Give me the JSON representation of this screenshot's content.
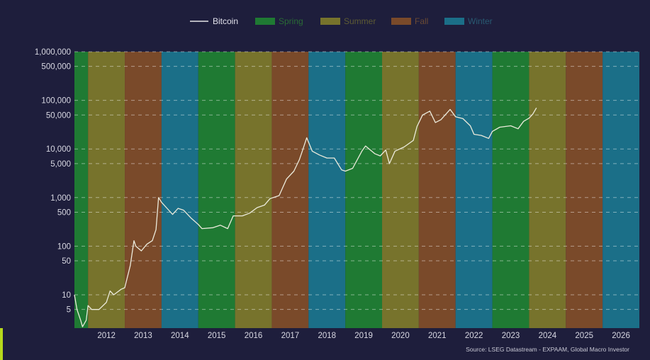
{
  "chart_data": {
    "type": "line",
    "title": "",
    "xlabel": "",
    "ylabel": "",
    "yscale": "log",
    "ylim": [
      2,
      1000000
    ],
    "xlim": [
      2011.63,
      2027.0
    ],
    "yticks": [
      1000000,
      500000,
      100000,
      50000,
      10000,
      5000,
      1000,
      500,
      100,
      50,
      10,
      5
    ],
    "ytick_labels": [
      "1,000,000",
      "500,000",
      "100,000",
      "50,000",
      "10,000",
      "5,000",
      "1,000",
      "500",
      "100",
      "50",
      "10",
      "5"
    ],
    "xtick_labels": [
      "2012",
      "2013",
      "2014",
      "2015",
      "2016",
      "2017",
      "2018",
      "2019",
      "2020",
      "2021",
      "2022",
      "2023",
      "2024",
      "2025",
      "2026"
    ],
    "grid": true,
    "legend_placement": "top-center",
    "legend": [
      {
        "label": "Bitcoin",
        "kind": "line",
        "color": "#e6e6e6",
        "text_color": "#e0e0ea"
      },
      {
        "label": "Spring",
        "kind": "patch",
        "color": "#1f7a33",
        "text_color": "#2a6b36"
      },
      {
        "label": "Summer",
        "kind": "patch",
        "color": "#77732c",
        "text_color": "#5d5b34"
      },
      {
        "label": "Fall",
        "kind": "patch",
        "color": "#7a4a2a",
        "text_color": "#6a4a34"
      },
      {
        "label": "Winter",
        "kind": "patch",
        "color": "#1b6f88",
        "text_color": "#285a72"
      }
    ],
    "seasons": [
      {
        "season": "Spring",
        "start": 2011.63,
        "end": 2012
      },
      {
        "season": "Summer",
        "start": 2012,
        "end": 2013
      },
      {
        "season": "Fall",
        "start": 2013,
        "end": 2014
      },
      {
        "season": "Winter",
        "start": 2014,
        "end": 2015
      },
      {
        "season": "Spring",
        "start": 2015,
        "end": 2016
      },
      {
        "season": "Summer",
        "start": 2016,
        "end": 2017
      },
      {
        "season": "Fall",
        "start": 2017,
        "end": 2018
      },
      {
        "season": "Winter",
        "start": 2018,
        "end": 2019
      },
      {
        "season": "Spring",
        "start": 2019,
        "end": 2020
      },
      {
        "season": "Summer",
        "start": 2020,
        "end": 2021
      },
      {
        "season": "Fall",
        "start": 2021,
        "end": 2022
      },
      {
        "season": "Winter",
        "start": 2022,
        "end": 2023
      },
      {
        "season": "Spring",
        "start": 2023,
        "end": 2024
      },
      {
        "season": "Summer",
        "start": 2024,
        "end": 2025
      },
      {
        "season": "Fall",
        "start": 2025,
        "end": 2026
      },
      {
        "season": "Winter",
        "start": 2026,
        "end": 2027
      }
    ],
    "series": [
      {
        "name": "Bitcoin",
        "x": [
          2011.63,
          2011.7,
          2011.8,
          2011.85,
          2011.95,
          2012.0,
          2012.1,
          2012.3,
          2012.5,
          2012.6,
          2012.7,
          2012.9,
          2013.0,
          2013.15,
          2013.25,
          2013.3,
          2013.45,
          2013.6,
          2013.75,
          2013.85,
          2013.92,
          2014.0,
          2014.15,
          2014.3,
          2014.45,
          2014.6,
          2014.8,
          2015.0,
          2015.1,
          2015.4,
          2015.6,
          2015.8,
          2015.95,
          2016.2,
          2016.4,
          2016.6,
          2016.8,
          2016.95,
          2017.2,
          2017.4,
          2017.6,
          2017.75,
          2017.85,
          2017.95,
          2018.1,
          2018.3,
          2018.5,
          2018.7,
          2018.9,
          2019.0,
          2019.2,
          2019.45,
          2019.55,
          2019.8,
          2019.95,
          2020.1,
          2020.2,
          2020.35,
          2020.6,
          2020.85,
          2020.95,
          2021.1,
          2021.3,
          2021.45,
          2021.6,
          2021.85,
          2022.0,
          2022.2,
          2022.4,
          2022.5,
          2022.7,
          2022.9,
          2023.0,
          2023.2,
          2023.5,
          2023.7,
          2023.85,
          2024.0,
          2024.1,
          2024.2
        ],
        "values": [
          10,
          5,
          3,
          2.2,
          3,
          6,
          5,
          5,
          7,
          12,
          10,
          13,
          14,
          40,
          130,
          100,
          80,
          110,
          130,
          220,
          1000,
          800,
          600,
          450,
          600,
          550,
          380,
          280,
          230,
          240,
          270,
          230,
          420,
          420,
          480,
          620,
          700,
          950,
          1100,
          2400,
          3500,
          6000,
          10000,
          17000,
          9000,
          7500,
          6500,
          6500,
          3700,
          3500,
          4000,
          9000,
          11500,
          8000,
          7200,
          9500,
          5000,
          9000,
          11000,
          15000,
          29000,
          50000,
          60000,
          35000,
          40000,
          65000,
          46000,
          42000,
          30000,
          20000,
          19000,
          16500,
          23000,
          28000,
          30000,
          26000,
          37000,
          43000,
          52000,
          70000
        ]
      }
    ],
    "source": "Source: LSEG Datastream - EXPAAM, Global Macro Investor"
  }
}
